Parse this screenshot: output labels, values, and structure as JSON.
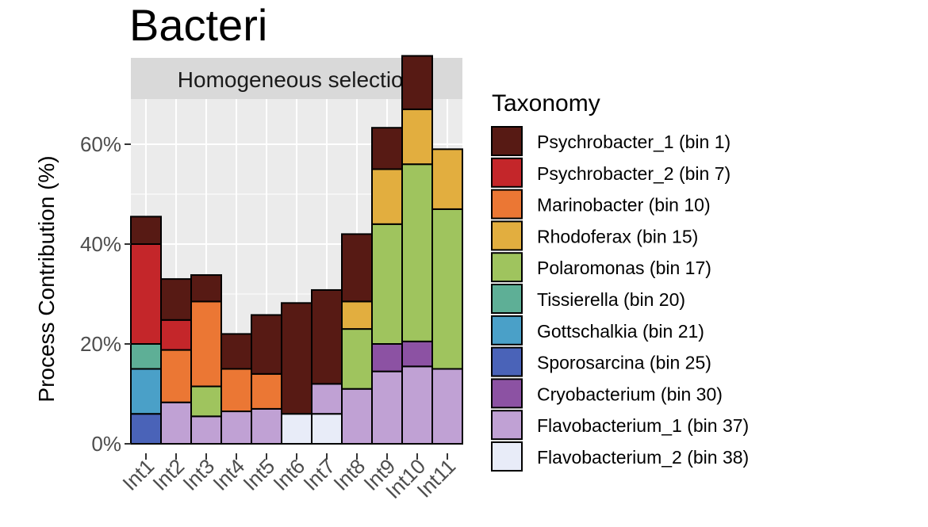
{
  "title": "Bacteri",
  "chart_data": {
    "type": "bar",
    "stacked": true,
    "facet_label": "Homogeneous selection",
    "ylabel": "Process Contribution (%)",
    "xlabel": "",
    "ylim": [
      0,
      70
    ],
    "yticks": [
      0,
      20,
      40,
      60
    ],
    "ytick_labels": [
      "0%",
      "20%",
      "40%",
      "60%"
    ],
    "grid": true,
    "legend_title": "Taxonomy",
    "legend_position": "right",
    "categories": [
      "Int1",
      "Int2",
      "Int3",
      "Int4",
      "Int5",
      "Int6",
      "Int7",
      "Int8",
      "Int9",
      "Int10",
      "Int11"
    ],
    "series": [
      {
        "name": "Flavobacterium_2 (bin 38)",
        "color": "#e8ecf8",
        "values": [
          0,
          0,
          0,
          0,
          0,
          6,
          6,
          0,
          0,
          0,
          0
        ]
      },
      {
        "name": "Flavobacterium_1 (bin 37)",
        "color": "#c0a1d4",
        "values": [
          0,
          8.3,
          5.5,
          6.5,
          7,
          0,
          6,
          11,
          14.5,
          15.5,
          15
        ]
      },
      {
        "name": "Cryobacterium (bin 30)",
        "color": "#8c52a3",
        "values": [
          0,
          0,
          0,
          0,
          0,
          0,
          0,
          0,
          5.5,
          5,
          0
        ]
      },
      {
        "name": "Sporosarcina (bin 25)",
        "color": "#4a63b8",
        "values": [
          6,
          0,
          0,
          0,
          0,
          0,
          0,
          0,
          0,
          0,
          0
        ]
      },
      {
        "name": "Gottschalkia (bin 21)",
        "color": "#4aa0c8",
        "values": [
          9,
          0,
          0,
          0,
          0,
          0,
          0,
          0,
          0,
          0,
          0
        ]
      },
      {
        "name": "Tissierella (bin 20)",
        "color": "#5eaf96",
        "values": [
          5,
          0,
          0,
          0,
          0,
          0,
          0,
          0,
          0,
          0,
          0
        ]
      },
      {
        "name": "Polaromonas (bin 17)",
        "color": "#9fc45e",
        "values": [
          0,
          0,
          6,
          0,
          0,
          0,
          0,
          12,
          24,
          35.5,
          32
        ]
      },
      {
        "name": "Rhodoferax (bin 15)",
        "color": "#e2ae3f",
        "values": [
          0,
          0,
          0,
          0,
          0,
          0,
          0,
          5.5,
          11,
          11,
          12
        ]
      },
      {
        "name": "Marinobacter (bin 10)",
        "color": "#eb7734",
        "values": [
          0,
          10.5,
          17,
          8.5,
          7,
          0,
          0,
          0,
          0,
          0,
          0
        ]
      },
      {
        "name": "Psychrobacter_2 (bin 7)",
        "color": "#c4262a",
        "values": [
          20,
          6,
          0,
          0,
          0,
          0,
          0,
          0,
          0,
          0,
          0
        ]
      },
      {
        "name": "Psychrobacter_1 (bin 1)",
        "color": "#571a14",
        "values": [
          5.5,
          8.2,
          5.3,
          7,
          11.8,
          22.2,
          18.8,
          13.5,
          8.3,
          10.7,
          0
        ]
      }
    ],
    "legend_order": [
      "Psychrobacter_1 (bin 1)",
      "Psychrobacter_2 (bin 7)",
      "Marinobacter (bin 10)",
      "Rhodoferax (bin 15)",
      "Polaromonas (bin 17)",
      "Tissierella (bin 20)",
      "Gottschalkia (bin 21)",
      "Sporosarcina (bin 25)",
      "Cryobacterium (bin 30)",
      "Flavobacterium_1 (bin 37)",
      "Flavobacterium_2 (bin 38)"
    ]
  }
}
